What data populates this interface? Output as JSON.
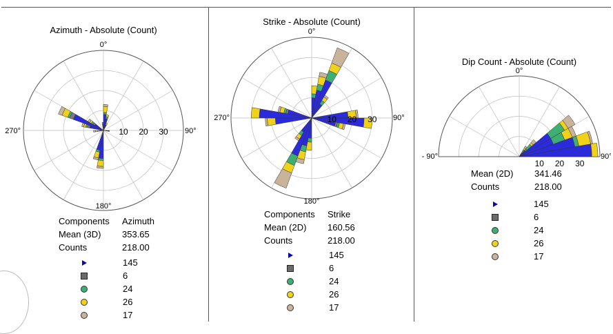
{
  "colors": {
    "series1": "#2b2bdc",
    "series2": "#7a7a7a",
    "series3": "#3fae73",
    "series4": "#f0d21a",
    "series5": "#c9b49a",
    "grid": "#bdbdbd"
  },
  "legend": [
    {
      "symbol": "triangle",
      "color": "#0a0aa8",
      "count": "145"
    },
    {
      "symbol": "square",
      "color": "#6b6b6b",
      "count": "6"
    },
    {
      "symbol": "circle",
      "color": "#3fae73",
      "count": "24"
    },
    {
      "symbol": "circle",
      "color": "#f0d21a",
      "count": "26"
    },
    {
      "symbol": "circle",
      "color": "#c9b49a",
      "count": "17"
    }
  ],
  "panels": [
    {
      "stats": [
        {
          "label": "Components",
          "value": "Azimuth"
        },
        {
          "label": "Mean (3D)",
          "value": "353.65"
        },
        {
          "label": "Counts",
          "value": "218.00"
        }
      ]
    },
    {
      "stats": [
        {
          "label": "Components",
          "value": "Strike"
        },
        {
          "label": "Mean (2D)",
          "value": "160.56"
        },
        {
          "label": "Counts",
          "value": "218.00"
        }
      ]
    },
    {
      "stats": [
        {
          "label": "Mean (2D)",
          "value": "341.46"
        },
        {
          "label": "Counts",
          "value": "218.00"
        }
      ]
    }
  ],
  "chart_data": [
    {
      "type": "rose",
      "title": "Azimuth - Absolute (Count)",
      "angle_labels": [
        "0°",
        "90°",
        "180°",
        "270°"
      ],
      "radial_ticks": [
        "10",
        "20",
        "30"
      ],
      "rmax": 40,
      "bin_width_deg": 10,
      "bins": [
        {
          "angle": 5,
          "segments": [
            8,
            0,
            1,
            3,
            1
          ]
        },
        {
          "angle": 15,
          "segments": [
            6,
            0,
            1,
            1,
            0
          ]
        },
        {
          "angle": 25,
          "segments": [
            3,
            0,
            0,
            1,
            0
          ]
        },
        {
          "angle": 95,
          "segments": [
            3,
            0,
            0,
            0,
            0
          ]
        },
        {
          "angle": 185,
          "segments": [
            14,
            0,
            1,
            3,
            1
          ]
        },
        {
          "angle": 195,
          "segments": [
            10,
            0,
            1,
            3,
            1
          ]
        },
        {
          "angle": 265,
          "segments": [
            2,
            0,
            1,
            1,
            1
          ]
        },
        {
          "angle": 285,
          "segments": [
            7,
            1,
            1,
            1,
            1
          ]
        },
        {
          "angle": 295,
          "segments": [
            16,
            2,
            1,
            3,
            2
          ]
        },
        {
          "angle": 305,
          "segments": [
            5,
            1,
            1,
            1,
            1
          ]
        },
        {
          "angle": 355,
          "segments": [
            3,
            1,
            0,
            0,
            0
          ]
        }
      ]
    },
    {
      "type": "rose",
      "title": "Strike - Absolute (Count)",
      "angle_labels": [
        "0°",
        "90°",
        "180°",
        "270°"
      ],
      "radial_ticks": [
        "10",
        "20",
        "30"
      ],
      "rmax": 40,
      "bin_width_deg": 10,
      "bins": [
        {
          "angle": 5,
          "segments": [
            10,
            0,
            2,
            4,
            0
          ]
        },
        {
          "angle": 15,
          "segments": [
            14,
            0,
            3,
            4,
            2
          ]
        },
        {
          "angle": 25,
          "segments": [
            20,
            0,
            5,
            4,
            8
          ]
        },
        {
          "angle": 35,
          "segments": [
            8,
            0,
            2,
            2,
            1
          ]
        },
        {
          "angle": 85,
          "segments": [
            18,
            0,
            0,
            4,
            1
          ]
        },
        {
          "angle": 95,
          "segments": [
            26,
            0,
            0,
            4,
            0
          ]
        },
        {
          "angle": 105,
          "segments": [
            12,
            1,
            1,
            2,
            1
          ]
        },
        {
          "angle": 185,
          "segments": [
            10,
            0,
            2,
            4,
            0
          ]
        },
        {
          "angle": 195,
          "segments": [
            14,
            0,
            3,
            4,
            2
          ]
        },
        {
          "angle": 205,
          "segments": [
            20,
            0,
            5,
            4,
            8
          ]
        },
        {
          "angle": 215,
          "segments": [
            8,
            0,
            2,
            2,
            1
          ]
        },
        {
          "angle": 265,
          "segments": [
            18,
            0,
            0,
            4,
            1
          ]
        },
        {
          "angle": 275,
          "segments": [
            26,
            0,
            0,
            4,
            0
          ]
        },
        {
          "angle": 285,
          "segments": [
            12,
            1,
            1,
            2,
            1
          ]
        }
      ]
    },
    {
      "type": "rose-half",
      "title": "Dip Count - Absolute (Count)",
      "angle_labels": [
        "0°",
        "90°",
        "- 90°"
      ],
      "radial_ticks": [
        "10",
        "20",
        "30"
      ],
      "rmax": 40,
      "bin_width_deg": 10,
      "bins": [
        {
          "angle": 35,
          "segments": [
            2,
            0,
            2,
            1,
            1
          ]
        },
        {
          "angle": 45,
          "segments": [
            4,
            1,
            3,
            1,
            2
          ]
        },
        {
          "angle": 55,
          "segments": [
            18,
            0,
            8,
            2,
            4
          ]
        },
        {
          "angle": 65,
          "segments": [
            18,
            0,
            6,
            4,
            2
          ]
        },
        {
          "angle": 75,
          "segments": [
            28,
            0,
            2,
            6,
            1
          ]
        },
        {
          "angle": 85,
          "segments": [
            36,
            0,
            0,
            3,
            0
          ]
        }
      ]
    }
  ]
}
